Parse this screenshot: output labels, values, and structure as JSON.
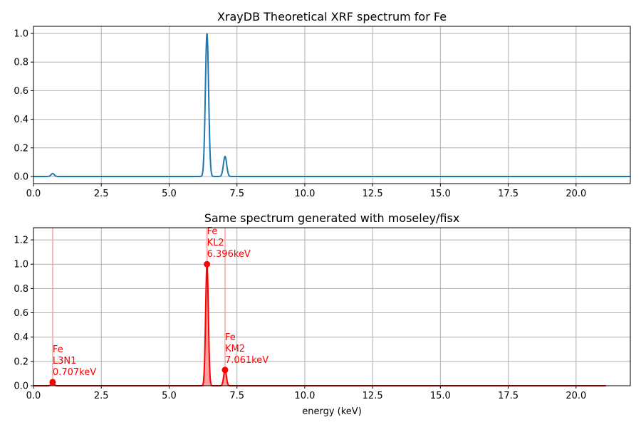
{
  "chart_data": [
    {
      "type": "line",
      "title": "XrayDB Theoretical XRF spectrum for Fe",
      "xlabel": "",
      "ylabel": "",
      "xlim": [
        0,
        22
      ],
      "ylim": [
        -0.05,
        1.05
      ],
      "xticks": [
        0,
        2.5,
        5,
        7.5,
        10,
        12.5,
        15,
        17.5,
        20
      ],
      "xtick_labels": [
        "0.0",
        "2.5",
        "5.0",
        "7.5",
        "10.0",
        "12.5",
        "15.0",
        "17.5",
        "20.0"
      ],
      "yticks": [
        0,
        0.2,
        0.4,
        0.6,
        0.8,
        1.0
      ],
      "ytick_labels": [
        "0.0",
        "0.2",
        "0.4",
        "0.6",
        "0.8",
        "1.0"
      ],
      "grid": true,
      "color": "#1f77b4",
      "peaks": [
        {
          "energy": 0.707,
          "intensity": 0.02,
          "sigma": 0.06
        },
        {
          "energy": 6.396,
          "intensity": 1.0,
          "sigma": 0.06
        },
        {
          "energy": 7.061,
          "intensity": 0.14,
          "sigma": 0.06
        }
      ],
      "x_range": [
        0,
        22
      ]
    },
    {
      "type": "area",
      "title": "Same spectrum generated with moseley/fisx",
      "xlabel": "energy (keV)",
      "ylabel": "",
      "xlim": [
        0,
        22
      ],
      "ylim": [
        0,
        1.3
      ],
      "xticks": [
        0,
        2.5,
        5,
        7.5,
        10,
        12.5,
        15,
        17.5,
        20
      ],
      "xtick_labels": [
        "0.0",
        "2.5",
        "5.0",
        "7.5",
        "10.0",
        "12.5",
        "15.0",
        "17.5",
        "20.0"
      ],
      "yticks": [
        0,
        0.2,
        0.4,
        0.6,
        0.8,
        1.0,
        1.2
      ],
      "ytick_labels": [
        "0.0",
        "0.2",
        "0.4",
        "0.6",
        "0.8",
        "1.0",
        "1.2"
      ],
      "grid": true,
      "color": "#ff0000",
      "fill_color": "#ff9f9f",
      "peaks": [
        {
          "energy": 0.707,
          "intensity": 0.03,
          "sigma": 0.05
        },
        {
          "energy": 6.396,
          "intensity": 1.0,
          "sigma": 0.05
        },
        {
          "energy": 7.061,
          "intensity": 0.13,
          "sigma": 0.05
        }
      ],
      "x_range": [
        0,
        21.1
      ],
      "lines": [
        {
          "element": "Fe",
          "line": "L3N1",
          "energy_label": "0.707keV",
          "energy": 0.707,
          "intensity": 0.03
        },
        {
          "element": "Fe",
          "line": "KL2",
          "energy_label": "6.396keV",
          "energy": 6.396,
          "intensity": 1.0
        },
        {
          "element": "Fe",
          "line": "KM2",
          "energy_label": "7.061keV",
          "energy": 7.061,
          "intensity": 0.13
        }
      ]
    }
  ]
}
